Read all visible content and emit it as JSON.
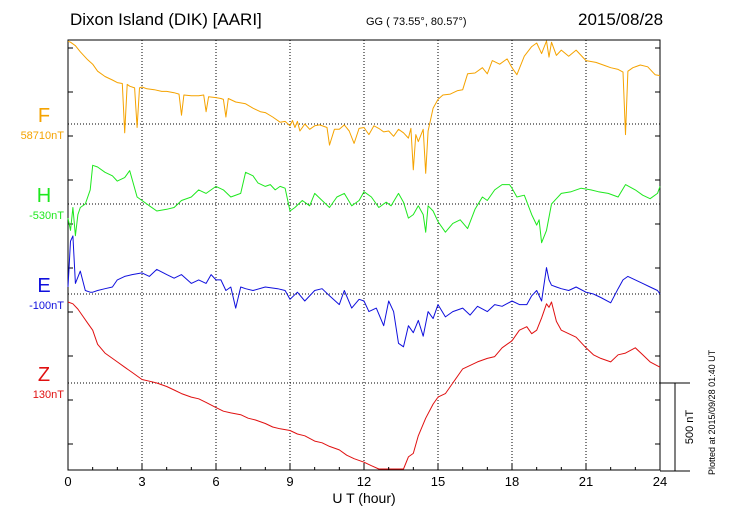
{
  "header": {
    "station": "Dixon Island (DIK)  [AARI]",
    "coords": "GG ( 73.55°,  80.57°)",
    "date": "2015/08/28"
  },
  "plotted_note": "Plotted at 2015/09/28 01:40 UT",
  "chart_data": {
    "type": "line",
    "xlabel": "U T (hour)",
    "ylabel": "",
    "xlim": [
      0,
      24
    ],
    "xticks": [
      0,
      3,
      6,
      9,
      12,
      15,
      18,
      21,
      24
    ],
    "grid": true,
    "scale_bar_label": "500 nT",
    "scale_bar_nT": 500,
    "series": [
      {
        "name": "F",
        "baseline": "58710nT",
        "color": "#f5a300",
        "offset": 1,
        "x": [
          0,
          0.1,
          0.3,
          0.5,
          0.8,
          1.0,
          1.2,
          1.5,
          1.8,
          2.0,
          2.2,
          2.3,
          2.4,
          2.5,
          2.7,
          2.8,
          2.9,
          3.0,
          3.2,
          3.5,
          3.8,
          4.0,
          4.3,
          4.5,
          4.6,
          4.7,
          5.0,
          5.3,
          5.5,
          5.6,
          5.7,
          6.0,
          6.2,
          6.3,
          6.4,
          6.5,
          6.8,
          7.0,
          7.2,
          7.5,
          7.8,
          8.0,
          8.3,
          8.6,
          8.8,
          9.0,
          9.1,
          9.2,
          9.3,
          9.4,
          9.6,
          9.8,
          10.0,
          10.2,
          10.5,
          10.6,
          10.8,
          11.0,
          11.2,
          11.4,
          11.6,
          11.8,
          12.0,
          12.2,
          12.4,
          12.6,
          12.8,
          13.0,
          13.2,
          13.4,
          13.6,
          13.8,
          13.9,
          14.0,
          14.1,
          14.2,
          14.4,
          14.5,
          14.6,
          14.8,
          15.0,
          15.2,
          15.5,
          15.8,
          16.0,
          16.2,
          16.5,
          16.8,
          17.0,
          17.2,
          17.5,
          17.8,
          18.0,
          18.2,
          18.5,
          18.8,
          19.0,
          19.2,
          19.4,
          19.5,
          19.6,
          19.8,
          20.0,
          20.3,
          20.6,
          21.0,
          21.4,
          21.8,
          22.0,
          22.3,
          22.5,
          22.6,
          22.7,
          22.9,
          23.2,
          23.5,
          23.8,
          24.0
        ],
        "y": [
          470,
          465,
          445,
          410,
          365,
          340,
          300,
          270,
          250,
          235,
          230,
          -50,
          225,
          215,
          205,
          -20,
          205,
          210,
          200,
          195,
          185,
          185,
          178,
          170,
          50,
          165,
          160,
          160,
          165,
          70,
          155,
          150,
          145,
          140,
          40,
          145,
          125,
          120,
          115,
          90,
          70,
          65,
          40,
          10,
          15,
          -10,
          20,
          -20,
          15,
          -40,
          0,
          -30,
          -10,
          -5,
          -20,
          -120,
          -30,
          -30,
          -5,
          -40,
          -110,
          -25,
          -20,
          -60,
          -10,
          -25,
          -45,
          -40,
          -70,
          -30,
          -50,
          -80,
          -25,
          -260,
          -60,
          -100,
          -30,
          -280,
          -40,
          90,
          140,
          165,
          170,
          190,
          195,
          285,
          290,
          320,
          285,
          360,
          340,
          370,
          320,
          280,
          385,
          440,
          460,
          400,
          490,
          380,
          465,
          390,
          420,
          385,
          420,
          360,
          350,
          330,
          320,
          310,
          295,
          -60,
          300,
          320,
          335,
          325,
          280,
          275
        ],
        "label_x": 25
      },
      {
        "name": "H",
        "baseline": "-530nT",
        "color": "#1ee81e",
        "offset": 2,
        "x": [
          0,
          0.1,
          0.2,
          0.3,
          0.4,
          0.5,
          0.7,
          0.9,
          1.0,
          1.2,
          1.5,
          1.8,
          2.0,
          2.3,
          2.5,
          2.8,
          3.0,
          3.3,
          3.6,
          4.0,
          4.3,
          4.6,
          5.0,
          5.3,
          5.6,
          6.0,
          6.3,
          6.6,
          7.0,
          7.2,
          7.5,
          7.7,
          8.0,
          8.2,
          8.4,
          8.6,
          8.8,
          9.0,
          9.2,
          9.5,
          9.8,
          10.0,
          10.3,
          10.6,
          10.9,
          11.2,
          11.5,
          11.8,
          12.0,
          12.3,
          12.6,
          12.9,
          13.1,
          13.4,
          13.6,
          13.8,
          14.0,
          14.2,
          14.4,
          14.5,
          14.6,
          14.8,
          15.0,
          15.3,
          15.6,
          15.9,
          16.2,
          16.5,
          16.8,
          17.0,
          17.3,
          17.6,
          17.9,
          18.0,
          18.2,
          18.5,
          18.8,
          19.0,
          19.1,
          19.2,
          19.4,
          19.6,
          19.8,
          20.0,
          20.4,
          20.8,
          21.2,
          21.5,
          21.9,
          22.3,
          22.6,
          23.0,
          23.3,
          23.6,
          23.9,
          24.0
        ],
        "y": [
          -80,
          -150,
          -20,
          -180,
          -60,
          -20,
          0,
          80,
          220,
          210,
          180,
          160,
          130,
          150,
          190,
          40,
          20,
          -10,
          -40,
          -30,
          -20,
          20,
          40,
          80,
          60,
          100,
          80,
          40,
          60,
          180,
          160,
          120,
          100,
          110,
          80,
          100,
          90,
          -40,
          -20,
          20,
          -10,
          60,
          20,
          -20,
          40,
          60,
          -10,
          20,
          70,
          40,
          -20,
          10,
          -10,
          60,
          10,
          -80,
          -60,
          -10,
          -60,
          -160,
          -10,
          -40,
          -100,
          -160,
          -110,
          -90,
          -140,
          -30,
          40,
          20,
          80,
          110,
          110,
          90,
          40,
          50,
          -60,
          -120,
          -90,
          -220,
          -150,
          0,
          30,
          60,
          70,
          90,
          80,
          70,
          60,
          40,
          110,
          80,
          50,
          30,
          60,
          100
        ],
        "label_x": 25
      },
      {
        "name": "E",
        "baseline": "-100nT",
        "color": "#1010dd",
        "offset": 3,
        "x": [
          0,
          0.1,
          0.2,
          0.3,
          0.5,
          0.7,
          0.9,
          1.0,
          1.2,
          1.5,
          1.8,
          2.0,
          2.3,
          2.6,
          3.0,
          3.3,
          3.6,
          4.0,
          4.3,
          4.6,
          5.0,
          5.3,
          5.6,
          5.8,
          6.0,
          6.2,
          6.4,
          6.6,
          6.8,
          7.0,
          7.2,
          7.5,
          8.0,
          8.5,
          8.8,
          9.0,
          9.3,
          9.6,
          10.0,
          10.3,
          10.6,
          11.0,
          11.2,
          11.5,
          11.8,
          12.0,
          12.2,
          12.5,
          12.8,
          13.0,
          13.2,
          13.4,
          13.6,
          13.8,
          14.0,
          14.2,
          14.4,
          14.6,
          14.8,
          15.0,
          15.3,
          15.6,
          16.0,
          16.3,
          16.6,
          17.0,
          17.3,
          17.6,
          18.0,
          18.3,
          18.6,
          18.8,
          19.0,
          19.2,
          19.4,
          19.5,
          19.6,
          19.8,
          20.0,
          20.3,
          20.6,
          21.0,
          21.3,
          21.6,
          22.0,
          22.3,
          22.5,
          22.7,
          23.0,
          23.3,
          23.6,
          23.9,
          24.0
        ],
        "y": [
          40,
          300,
          330,
          60,
          130,
          20,
          10,
          10,
          20,
          30,
          40,
          80,
          100,
          110,
          120,
          100,
          140,
          110,
          90,
          110,
          60,
          80,
          60,
          110,
          80,
          80,
          20,
          40,
          -80,
          40,
          30,
          20,
          40,
          30,
          20,
          -30,
          10,
          -40,
          20,
          30,
          -10,
          -60,
          20,
          -80,
          -30,
          -40,
          -100,
          -80,
          -180,
          -40,
          -100,
          -280,
          -300,
          -180,
          -220,
          -150,
          -240,
          -100,
          -140,
          -60,
          -130,
          -100,
          -80,
          -120,
          -70,
          -100,
          -60,
          -70,
          -40,
          -60,
          -60,
          -10,
          20,
          -40,
          150,
          80,
          50,
          40,
          30,
          20,
          40,
          10,
          0,
          -20,
          -50,
          30,
          80,
          100,
          80,
          60,
          40,
          20,
          0
        ]
      },
      {
        "name": "Z",
        "baseline": "130nT",
        "color": "#e01010",
        "offset": 4,
        "x": [
          0,
          0.2,
          0.4,
          0.6,
          0.8,
          1.0,
          1.2,
          1.5,
          1.8,
          2.0,
          2.3,
          2.6,
          3.0,
          3.3,
          3.6,
          4.0,
          4.3,
          4.6,
          5.0,
          5.3,
          5.6,
          6.0,
          6.3,
          6.6,
          7.0,
          7.3,
          7.6,
          8.0,
          8.3,
          8.6,
          9.0,
          9.3,
          9.6,
          10.0,
          10.3,
          10.6,
          11.0,
          11.3,
          11.6,
          12.0,
          12.3,
          12.6,
          12.9,
          13.0,
          13.2,
          13.4,
          13.6,
          13.8,
          14.0,
          14.2,
          14.5,
          14.8,
          15.0,
          15.3,
          15.6,
          16.0,
          16.3,
          16.6,
          17.0,
          17.3,
          17.6,
          18.0,
          18.3,
          18.6,
          18.8,
          19.0,
          19.2,
          19.4,
          19.5,
          19.6,
          19.8,
          20.0,
          20.3,
          20.6,
          21.0,
          21.3,
          21.6,
          22.0,
          22.3,
          22.6,
          23.0,
          23.3,
          23.6,
          24.0
        ],
        "y": [
          460,
          450,
          420,
          380,
          340,
          300,
          220,
          170,
          140,
          120,
          90,
          60,
          20,
          10,
          0,
          -20,
          -40,
          -60,
          -80,
          -90,
          -110,
          -140,
          -160,
          -170,
          -180,
          -200,
          -210,
          -230,
          -250,
          -260,
          -270,
          -290,
          -300,
          -330,
          -340,
          -360,
          -380,
          -410,
          -430,
          -450,
          -470,
          -500,
          -520,
          -490,
          -560,
          -580,
          -500,
          -420,
          -400,
          -300,
          -200,
          -120,
          -80,
          -60,
          0,
          80,
          100,
          120,
          140,
          150,
          200,
          240,
          300,
          320,
          280,
          300,
          370,
          450,
          430,
          460,
          350,
          300,
          280,
          260,
          200,
          160,
          140,
          120,
          160,
          170,
          200,
          160,
          120,
          90
        ]
      }
    ]
  }
}
